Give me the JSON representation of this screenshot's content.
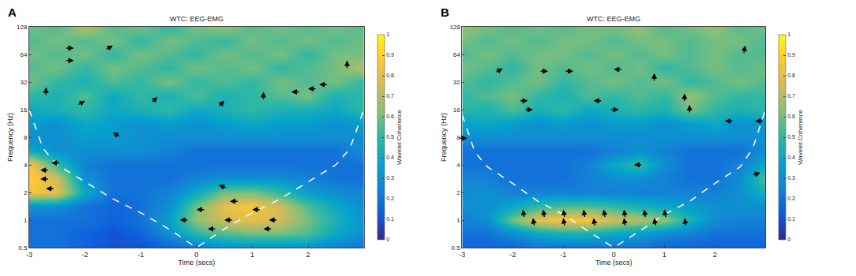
{
  "chart_data": [
    {
      "type": "heatmap",
      "panel_label": "A",
      "title": "WTC: EEG-EMG",
      "x_label": "Time (secs)",
      "y_label": "Frequency (Hz)",
      "log": "y",
      "xlim": [
        -3,
        3
      ],
      "ylim": [
        0.5,
        128
      ],
      "xticks": [
        -3,
        -2,
        -1,
        0,
        1,
        2
      ],
      "yticks": [
        0.5,
        1,
        2,
        4,
        8,
        16,
        32,
        64,
        128
      ],
      "colorbar": {
        "title": "Wavelet Coherence",
        "range": [
          0,
          1
        ],
        "ticks": [
          0,
          0.1,
          0.2,
          0.3,
          0.4,
          0.5,
          0.6,
          0.7,
          0.8,
          0.9,
          1
        ]
      },
      "x": [
        -3,
        -2.5,
        -2,
        -1.5,
        -1,
        -0.5,
        0,
        0.5,
        1,
        1.5,
        2,
        2.5,
        3
      ],
      "y": [
        0.5,
        0.71,
        1,
        1.41,
        2,
        2.83,
        4,
        5.66,
        8,
        11.3,
        16,
        22.6,
        32,
        45.3,
        64,
        90.5,
        128
      ],
      "z": [
        [
          0.2,
          0.2,
          0.15,
          0.1,
          0.1,
          0.15,
          0.2,
          0.3,
          0.3,
          0.3,
          0.3,
          0.25,
          0.2
        ],
        [
          0.2,
          0.2,
          0.15,
          0.1,
          0.15,
          0.3,
          0.5,
          0.55,
          0.6,
          0.6,
          0.55,
          0.4,
          0.3
        ],
        [
          0.2,
          0.2,
          0.2,
          0.15,
          0.2,
          0.35,
          0.65,
          0.75,
          0.8,
          0.75,
          0.6,
          0.45,
          0.3
        ],
        [
          0.3,
          0.3,
          0.2,
          0.15,
          0.2,
          0.3,
          0.6,
          0.8,
          0.85,
          0.75,
          0.55,
          0.4,
          0.3
        ],
        [
          0.85,
          0.8,
          0.4,
          0.2,
          0.2,
          0.25,
          0.4,
          0.6,
          0.6,
          0.5,
          0.35,
          0.3,
          0.25
        ],
        [
          0.9,
          0.75,
          0.3,
          0.2,
          0.2,
          0.2,
          0.25,
          0.3,
          0.3,
          0.3,
          0.25,
          0.2,
          0.2
        ],
        [
          0.85,
          0.5,
          0.25,
          0.2,
          0.2,
          0.2,
          0.2,
          0.2,
          0.2,
          0.2,
          0.2,
          0.2,
          0.2
        ],
        [
          0.4,
          0.3,
          0.3,
          0.3,
          0.3,
          0.25,
          0.2,
          0.2,
          0.2,
          0.2,
          0.2,
          0.2,
          0.3
        ],
        [
          0.3,
          0.3,
          0.35,
          0.35,
          0.3,
          0.3,
          0.3,
          0.3,
          0.3,
          0.3,
          0.3,
          0.3,
          0.3
        ],
        [
          0.35,
          0.3,
          0.4,
          0.35,
          0.3,
          0.35,
          0.3,
          0.35,
          0.4,
          0.35,
          0.35,
          0.3,
          0.35
        ],
        [
          0.4,
          0.45,
          0.5,
          0.4,
          0.45,
          0.5,
          0.4,
          0.45,
          0.5,
          0.45,
          0.45,
          0.4,
          0.5
        ],
        [
          0.5,
          0.45,
          0.55,
          0.4,
          0.5,
          0.45,
          0.55,
          0.45,
          0.5,
          0.55,
          0.6,
          0.45,
          0.5
        ],
        [
          0.6,
          0.5,
          0.45,
          0.55,
          0.5,
          0.6,
          0.5,
          0.55,
          0.5,
          0.6,
          0.55,
          0.6,
          0.5
        ],
        [
          0.55,
          0.6,
          0.5,
          0.6,
          0.55,
          0.5,
          0.6,
          0.55,
          0.6,
          0.5,
          0.55,
          0.6,
          0.7
        ],
        [
          0.6,
          0.55,
          0.6,
          0.5,
          0.6,
          0.55,
          0.5,
          0.6,
          0.55,
          0.6,
          0.5,
          0.6,
          0.6
        ],
        [
          0.55,
          0.6,
          0.55,
          0.6,
          0.5,
          0.6,
          0.55,
          0.5,
          0.6,
          0.55,
          0.6,
          0.55,
          0.6
        ],
        [
          0.6,
          0.55,
          0.7,
          0.55,
          0.6,
          0.5,
          0.6,
          0.65,
          0.55,
          0.6,
          0.55,
          0.6,
          0.55
        ]
      ],
      "coi": {
        "x": [
          -3,
          -2.75,
          -2.5,
          -2,
          -1.5,
          -1,
          -0.5,
          0,
          0.5,
          1,
          1.5,
          2,
          2.5,
          2.75,
          3
        ],
        "y": [
          16,
          6,
          4,
          2.6,
          1.7,
          1.2,
          0.8,
          0.5,
          0.8,
          1.2,
          1.7,
          2.6,
          4,
          6,
          16
        ]
      },
      "arrows": [
        {
          "x": 0.6,
          "y": 1.6,
          "phase": 180
        },
        {
          "x": 0,
          "y": 1.3,
          "phase": 180
        },
        {
          "x": 1,
          "y": 1.3,
          "phase": 180
        },
        {
          "x": -0.3,
          "y": 1,
          "phase": 180
        },
        {
          "x": 0.5,
          "y": 1,
          "phase": 180
        },
        {
          "x": 1.3,
          "y": 1,
          "phase": 180
        },
        {
          "x": 0.2,
          "y": 0.8,
          "phase": 180
        },
        {
          "x": 1.2,
          "y": 0.8,
          "phase": 180
        },
        {
          "x": 0.4,
          "y": 2.4,
          "phase": 160
        },
        {
          "x": -2.8,
          "y": 3.5,
          "phase": 180
        },
        {
          "x": -2.8,
          "y": 2.8,
          "phase": 180
        },
        {
          "x": -2.7,
          "y": 2.2,
          "phase": 180
        },
        {
          "x": -2.6,
          "y": 4.2,
          "phase": 180
        },
        {
          "x": -1.5,
          "y": 9,
          "phase": 150
        },
        {
          "x": -2,
          "y": 20,
          "phase": 30
        },
        {
          "x": 1.7,
          "y": 25,
          "phase": 180
        },
        {
          "x": -2.7,
          "y": 28,
          "phase": 90
        },
        {
          "x": -2.2,
          "y": 75,
          "phase": 0
        },
        {
          "x": -2.2,
          "y": 55,
          "phase": 0
        },
        {
          "x": -1.5,
          "y": 80,
          "phase": 30
        },
        {
          "x": 2.7,
          "y": 55,
          "phase": 90
        },
        {
          "x": 0.5,
          "y": 20,
          "phase": 45
        },
        {
          "x": -0.7,
          "y": 22,
          "phase": 45
        },
        {
          "x": 1.2,
          "y": 25,
          "phase": 90
        },
        {
          "x": 2,
          "y": 27,
          "phase": 180
        },
        {
          "x": 2.2,
          "y": 30,
          "phase": 180
        }
      ]
    },
    {
      "type": "heatmap",
      "panel_label": "B",
      "title": "WTC: EEG-EMG",
      "x_label": "Time (secs)",
      "y_label": "Frequency (Hz)",
      "log": "y",
      "xlim": [
        -3,
        3
      ],
      "ylim": [
        0.5,
        128
      ],
      "xticks": [
        -3,
        -2,
        -1,
        0,
        1,
        2
      ],
      "yticks": [
        0.5,
        1,
        2,
        4,
        8,
        16,
        32,
        64,
        128
      ],
      "colorbar": {
        "title": "Wavelet Coherence",
        "range": [
          0,
          1
        ],
        "ticks": [
          0,
          0.1,
          0.2,
          0.3,
          0.4,
          0.5,
          0.6,
          0.7,
          0.8,
          0.9,
          1
        ]
      },
      "x": [
        -3,
        -2.5,
        -2,
        -1.5,
        -1,
        -0.5,
        0,
        0.5,
        1,
        1.5,
        2,
        2.5,
        3
      ],
      "y": [
        0.5,
        0.71,
        1,
        1.41,
        2,
        2.83,
        4,
        5.66,
        8,
        11.3,
        16,
        22.6,
        32,
        45.3,
        64,
        90.5,
        128
      ],
      "z": [
        [
          0.15,
          0.15,
          0.15,
          0.2,
          0.2,
          0.2,
          0.2,
          0.2,
          0.15,
          0.15,
          0.15,
          0.15,
          0.15
        ],
        [
          0.2,
          0.2,
          0.3,
          0.4,
          0.45,
          0.45,
          0.4,
          0.35,
          0.3,
          0.25,
          0.2,
          0.2,
          0.2
        ],
        [
          0.25,
          0.3,
          0.6,
          0.8,
          0.85,
          0.85,
          0.75,
          0.7,
          0.65,
          0.45,
          0.3,
          0.25,
          0.25
        ],
        [
          0.3,
          0.3,
          0.4,
          0.5,
          0.55,
          0.55,
          0.5,
          0.45,
          0.4,
          0.35,
          0.3,
          0.3,
          0.3
        ],
        [
          0.3,
          0.3,
          0.25,
          0.25,
          0.25,
          0.25,
          0.25,
          0.25,
          0.25,
          0.25,
          0.25,
          0.3,
          0.45
        ],
        [
          0.25,
          0.25,
          0.2,
          0.2,
          0.2,
          0.25,
          0.3,
          0.3,
          0.25,
          0.2,
          0.2,
          0.3,
          0.55
        ],
        [
          0.2,
          0.2,
          0.2,
          0.2,
          0.2,
          0.25,
          0.4,
          0.5,
          0.3,
          0.2,
          0.2,
          0.25,
          0.4
        ],
        [
          0.2,
          0.2,
          0.2,
          0.2,
          0.2,
          0.2,
          0.25,
          0.3,
          0.25,
          0.2,
          0.2,
          0.2,
          0.3
        ],
        [
          0.3,
          0.3,
          0.3,
          0.3,
          0.3,
          0.3,
          0.3,
          0.3,
          0.3,
          0.3,
          0.3,
          0.3,
          0.3
        ],
        [
          0.35,
          0.4,
          0.35,
          0.3,
          0.35,
          0.3,
          0.35,
          0.35,
          0.3,
          0.35,
          0.4,
          0.3,
          0.35
        ],
        [
          0.5,
          0.45,
          0.55,
          0.45,
          0.5,
          0.4,
          0.45,
          0.5,
          0.45,
          0.6,
          0.5,
          0.45,
          0.5
        ],
        [
          0.5,
          0.55,
          0.6,
          0.5,
          0.45,
          0.55,
          0.5,
          0.55,
          0.5,
          0.65,
          0.55,
          0.5,
          0.5
        ],
        [
          0.55,
          0.5,
          0.55,
          0.6,
          0.5,
          0.55,
          0.6,
          0.55,
          0.6,
          0.5,
          0.55,
          0.6,
          0.55
        ],
        [
          0.6,
          0.55,
          0.5,
          0.6,
          0.55,
          0.6,
          0.55,
          0.6,
          0.5,
          0.55,
          0.6,
          0.55,
          0.6
        ],
        [
          0.55,
          0.6,
          0.55,
          0.6,
          0.6,
          0.55,
          0.6,
          0.55,
          0.6,
          0.55,
          0.6,
          0.55,
          0.55
        ],
        [
          0.6,
          0.55,
          0.6,
          0.55,
          0.6,
          0.6,
          0.55,
          0.6,
          0.6,
          0.55,
          0.6,
          0.6,
          0.55
        ],
        [
          0.65,
          0.6,
          0.55,
          0.6,
          0.55,
          0.6,
          0.6,
          0.65,
          0.55,
          0.6,
          0.65,
          0.55,
          0.6
        ]
      ],
      "coi": {
        "x": [
          -3,
          -2.75,
          -2.5,
          -2,
          -1.5,
          -1,
          -0.5,
          0,
          0.5,
          1,
          1.5,
          2,
          2.5,
          2.75,
          3
        ],
        "y": [
          14,
          5.5,
          3.8,
          2.5,
          1.6,
          1.15,
          0.75,
          0.5,
          0.75,
          1.15,
          1.6,
          2.5,
          3.8,
          6,
          16
        ]
      },
      "arrows": [
        {
          "x": -1.8,
          "y": 1.3,
          "phase": 100
        },
        {
          "x": -1.4,
          "y": 1.3,
          "phase": 100
        },
        {
          "x": -1,
          "y": 1.3,
          "phase": 100
        },
        {
          "x": -0.6,
          "y": 1.3,
          "phase": 100
        },
        {
          "x": -0.2,
          "y": 1.3,
          "phase": 100
        },
        {
          "x": 0.2,
          "y": 1.3,
          "phase": 100
        },
        {
          "x": 0.6,
          "y": 1.3,
          "phase": 100
        },
        {
          "x": 1,
          "y": 1.3,
          "phase": 100
        },
        {
          "x": 1.4,
          "y": 1.05,
          "phase": 100
        },
        {
          "x": -1.6,
          "y": 1.05,
          "phase": 100
        },
        {
          "x": -1,
          "y": 1.05,
          "phase": 100
        },
        {
          "x": -0.4,
          "y": 1.05,
          "phase": 100
        },
        {
          "x": 0.2,
          "y": 1.05,
          "phase": 100
        },
        {
          "x": 0.8,
          "y": 1.05,
          "phase": 100
        },
        {
          "x": 0.4,
          "y": 4,
          "phase": 180
        },
        {
          "x": 2.9,
          "y": 3.3,
          "phase": 20
        },
        {
          "x": -2.9,
          "y": 7.8,
          "phase": 0
        },
        {
          "x": -1.7,
          "y": 20,
          "phase": 0
        },
        {
          "x": -1.6,
          "y": 16,
          "phase": 0
        },
        {
          "x": -1.3,
          "y": 42,
          "phase": 0
        },
        {
          "x": -0.8,
          "y": 42,
          "phase": 0
        },
        {
          "x": -0.4,
          "y": 20,
          "phase": 180
        },
        {
          "x": 0,
          "y": 44,
          "phase": 180
        },
        {
          "x": 0.1,
          "y": 16,
          "phase": 0
        },
        {
          "x": 1.4,
          "y": 24,
          "phase": 90
        },
        {
          "x": 1.5,
          "y": 18,
          "phase": 90
        },
        {
          "x": 2.2,
          "y": 12,
          "phase": 180
        },
        {
          "x": 2.8,
          "y": 12,
          "phase": 180
        },
        {
          "x": 0.8,
          "y": 40,
          "phase": 90
        },
        {
          "x": -2.2,
          "y": 45,
          "phase": 30
        },
        {
          "x": 2.6,
          "y": 80,
          "phase": 80
        }
      ]
    }
  ]
}
